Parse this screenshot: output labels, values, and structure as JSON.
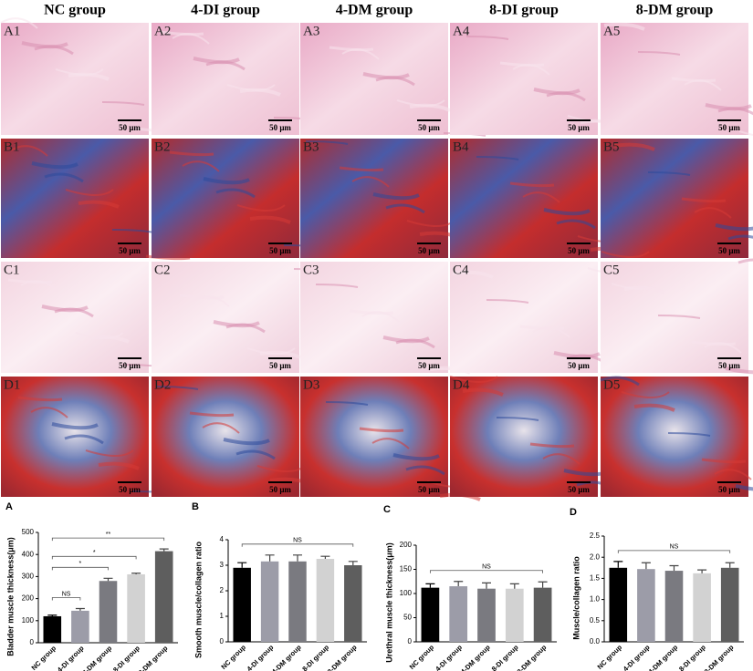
{
  "figure": {
    "columns": [
      "NC group",
      "4-DI group",
      "4-DM group",
      "8-DI group",
      "8-DM group"
    ],
    "panel_labels": [
      [
        "A1",
        "A2",
        "A3",
        "A4",
        "A5"
      ],
      [
        "B1",
        "B2",
        "B3",
        "B4",
        "B5"
      ],
      [
        "C1",
        "C2",
        "C3",
        "C4",
        "C5"
      ],
      [
        "D1",
        "D2",
        "D3",
        "D4",
        "D5"
      ]
    ],
    "scale_bar": "50 μm"
  },
  "chart_data": [
    {
      "type": "bar",
      "panel_label": "A",
      "y_label": "Bladder muscle thickness(μm)",
      "categories": [
        "NC group",
        "4-DI group",
        "4-DM group",
        "8-DI group",
        "8-DM group"
      ],
      "series": [
        {
          "values": [
            120,
            145,
            280,
            310,
            415
          ],
          "errors": [
            5,
            10,
            12,
            5,
            10
          ],
          "colors": [
            "#000000",
            "#9c9ca8",
            "#7a7a80",
            "#d2d2d2",
            "#5e5e5e"
          ]
        }
      ],
      "ylim": [
        0,
        500
      ],
      "yticks": [
        0,
        100,
        200,
        300,
        400,
        500
      ],
      "brackets": [
        {
          "label": "NS",
          "from": "NC group",
          "to": "4-DI group"
        },
        {
          "label": "*",
          "from": "NC group",
          "to": "4-DM group"
        },
        {
          "label": "*",
          "from": "NC group",
          "to": "8-DI group"
        },
        {
          "label": "**",
          "from": "NC group",
          "to": "8-DM group"
        }
      ]
    },
    {
      "type": "bar",
      "panel_label": "B",
      "y_label": "Smooth muscle/collagen ratio",
      "categories": [
        "NC group",
        "4-DI group",
        "4-DM group",
        "8-DI group",
        "8-DM group"
      ],
      "series": [
        {
          "values": [
            2.9,
            3.15,
            3.15,
            3.25,
            3.0
          ],
          "errors": [
            0.2,
            0.25,
            0.25,
            0.1,
            0.15
          ],
          "colors": [
            "#000000",
            "#9c9ca8",
            "#7a7a80",
            "#d2d2d2",
            "#5e5e5e"
          ]
        }
      ],
      "ylim": [
        0,
        4
      ],
      "yticks": [
        0,
        1,
        2,
        3,
        4
      ],
      "brackets": [
        {
          "label": "NS",
          "from": "NC group",
          "to": "8-DM group"
        }
      ]
    },
    {
      "type": "bar",
      "panel_label": "C",
      "y_label": "Urethral muscle thickness(μm)",
      "categories": [
        "NC group",
        "4-DI group",
        "4-DM group",
        "8-DI group",
        "8-DM group"
      ],
      "series": [
        {
          "values": [
            112,
            115,
            110,
            110,
            112
          ],
          "errors": [
            8,
            10,
            12,
            10,
            12
          ],
          "colors": [
            "#000000",
            "#9c9ca8",
            "#7a7a80",
            "#d2d2d2",
            "#5e5e5e"
          ]
        }
      ],
      "ylim": [
        0,
        200
      ],
      "yticks": [
        0,
        50,
        100,
        150,
        200
      ],
      "brackets": [
        {
          "label": "NS",
          "from": "NC group",
          "to": "8-DM group"
        }
      ]
    },
    {
      "type": "bar",
      "panel_label": "D",
      "y_label": "Muscle/collagen ratio",
      "categories": [
        "NC group",
        "4-DI group",
        "4-DM group",
        "8-DI group",
        "8-DM group"
      ],
      "series": [
        {
          "values": [
            1.75,
            1.72,
            1.68,
            1.62,
            1.75
          ],
          "errors": [
            0.15,
            0.15,
            0.12,
            0.08,
            0.12
          ],
          "colors": [
            "#000000",
            "#9c9ca8",
            "#7a7a80",
            "#d2d2d2",
            "#5e5e5e"
          ]
        }
      ],
      "ylim": [
        0,
        2.5
      ],
      "yticks": [
        {
          "value": 0,
          "label": "0.0"
        },
        0.5,
        {
          "value": 1,
          "label": "1.0"
        },
        1.5,
        {
          "value": 2,
          "label": "2.0"
        },
        2.5
      ],
      "brackets": [
        {
          "label": "NS",
          "from": "NC group",
          "to": "8-DM group"
        }
      ]
    }
  ]
}
